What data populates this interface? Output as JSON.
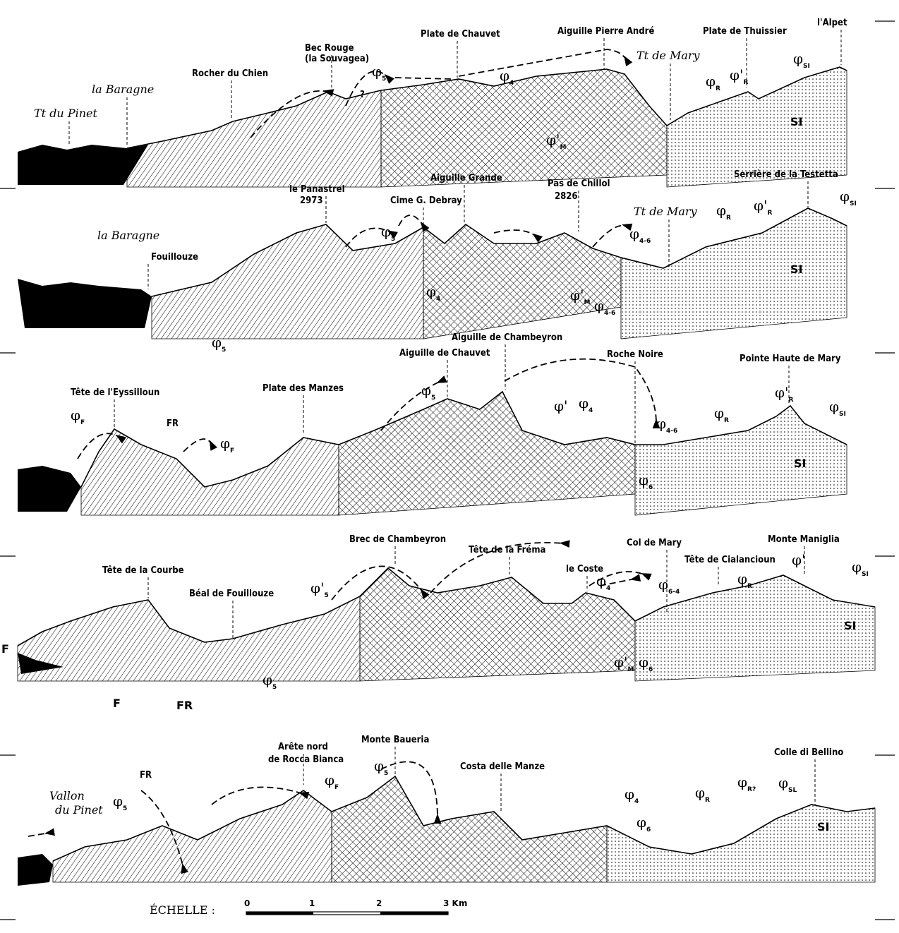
{
  "colors": {
    "ink": "#000000",
    "paper": "#ffffff"
  },
  "panels": [
    {
      "peaks": [
        "Tt du Pinet",
        "la Baragne",
        "Rocher du Chien",
        "Bec Rouge",
        "(la Souvagea)",
        "Plate de Chauvet",
        "Aiguille Pierre André",
        "Tt de Mary",
        "Plate de Thuissier",
        "l'Alpet"
      ],
      "phis": [
        {
          "s": "φ",
          "sub": "5"
        },
        {
          "s": "φ",
          "sub": "4"
        },
        {
          "s": "φ'",
          "sub": "M"
        },
        {
          "s": "φ",
          "sub": "R"
        },
        {
          "s": "φ'",
          "sub": "R"
        },
        {
          "s": "φ",
          "sub": "SI"
        }
      ],
      "others": [
        "?",
        "SI"
      ]
    },
    {
      "peaks": [
        "la Baragne",
        "Fouillouze",
        "le Panastrel",
        "2973",
        "Cime G. Debray",
        "Aiguille Grande",
        "Pas de Chillol",
        "2826",
        "Tt de Mary",
        "Serrière de la Testetta"
      ],
      "phis": [
        {
          "s": "φ",
          "sub": "5"
        },
        {
          "s": "φ",
          "sub": "4"
        },
        {
          "s": "φ'",
          "sub": "M"
        },
        {
          "s": "φ",
          "sub": "4-6"
        },
        {
          "s": "φ",
          "sub": "4-6"
        },
        {
          "s": "φ",
          "sub": "R"
        },
        {
          "s": "φ'",
          "sub": "R"
        },
        {
          "s": "φ",
          "sub": "SI"
        },
        {
          "s": "φ",
          "sub": "5"
        }
      ],
      "others": [
        "SI"
      ]
    },
    {
      "peaks": [
        "Tête de l'Eyssilloun",
        "Plate des Manzes",
        "Aiguille de Chauvet",
        "Aiguille de Chambeyron",
        "Roche Noire",
        "Pointe Haute de Mary"
      ],
      "phis": [
        {
          "s": "φ",
          "sub": "F"
        },
        {
          "s": "φ",
          "sub": "F"
        },
        {
          "s": "φ",
          "sub": "5"
        },
        {
          "s": "φ'",
          "sub": ""
        },
        {
          "s": "φ",
          "sub": "4"
        },
        {
          "s": "φ",
          "sub": "4-6"
        },
        {
          "s": "φ",
          "sub": "6"
        },
        {
          "s": "φ",
          "sub": "R"
        },
        {
          "s": "φ'",
          "sub": "R"
        },
        {
          "s": "φ",
          "sub": "SI"
        }
      ],
      "others": [
        "FR",
        "SI"
      ]
    },
    {
      "peaks": [
        "Tête de la Courbe",
        "Béal de Fouillouze",
        "Brec de Chambeyron",
        "Tête de la Fréma",
        "le Coste",
        "Col de Mary",
        "Tête de Cialancioun",
        "Monte Maniglia"
      ],
      "phis": [
        {
          "s": "φ'",
          "sub": "5"
        },
        {
          "s": "φ",
          "sub": "5"
        },
        {
          "s": "φ",
          "sub": "4"
        },
        {
          "s": "φ",
          "sub": "6-4"
        },
        {
          "s": "φ'",
          "sub": "M"
        },
        {
          "s": "φ",
          "sub": "6"
        },
        {
          "s": "φ",
          "sub": "R"
        },
        {
          "s": "φ'",
          "sub": ""
        },
        {
          "s": "φ",
          "sub": "SI"
        }
      ],
      "others": [
        "F",
        "F",
        "FR",
        "SI"
      ]
    },
    {
      "peaks": [
        "Vallon",
        "du Pinet",
        "Arête nord",
        "de Rocca Bianca",
        "Monte Baueria",
        "Costa delle Manze",
        "Colle di Bellino"
      ],
      "phis": [
        {
          "s": "φ",
          "sub": "5"
        },
        {
          "s": "φ",
          "sub": "F"
        },
        {
          "s": "φ",
          "sub": "5"
        },
        {
          "s": "φ",
          "sub": "4"
        },
        {
          "s": "φ",
          "sub": "6"
        },
        {
          "s": "φ",
          "sub": "R"
        },
        {
          "s": "φ",
          "sub": "R?"
        },
        {
          "s": "φ",
          "sub": "SL"
        }
      ],
      "others": [
        "FR",
        "SI"
      ]
    }
  ],
  "scale": {
    "label": "ÉCHELLE :",
    "ticks": [
      "0",
      "1",
      "2",
      "3 Km"
    ]
  }
}
